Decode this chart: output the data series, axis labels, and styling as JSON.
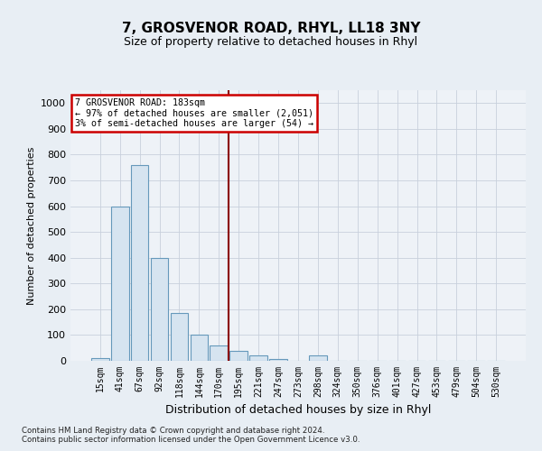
{
  "title": "7, GROSVENOR ROAD, RHYL, LL18 3NY",
  "subtitle": "Size of property relative to detached houses in Rhyl",
  "xlabel": "Distribution of detached houses by size in Rhyl",
  "ylabel": "Number of detached properties",
  "footer_line1": "Contains HM Land Registry data © Crown copyright and database right 2024.",
  "footer_line2": "Contains public sector information licensed under the Open Government Licence v3.0.",
  "annotation_line1": "7 GROSVENOR ROAD: 183sqm",
  "annotation_line2": "← 97% of detached houses are smaller (2,051)",
  "annotation_line3": "3% of semi-detached houses are larger (54) →",
  "bar_color": "#d6e4f0",
  "bar_edge_color": "#6699bb",
  "vline_color": "#8b0000",
  "vline_x": 7,
  "categories": [
    "15sqm",
    "41sqm",
    "67sqm",
    "92sqm",
    "118sqm",
    "144sqm",
    "170sqm",
    "195sqm",
    "221sqm",
    "247sqm",
    "273sqm",
    "298sqm",
    "324sqm",
    "350sqm",
    "376sqm",
    "401sqm",
    "427sqm",
    "453sqm",
    "479sqm",
    "504sqm",
    "530sqm"
  ],
  "values": [
    10,
    600,
    760,
    400,
    185,
    100,
    60,
    40,
    20,
    8,
    0,
    20,
    0,
    0,
    0,
    0,
    0,
    0,
    0,
    0,
    0
  ],
  "ylim": [
    0,
    1050
  ],
  "yticks": [
    0,
    100,
    200,
    300,
    400,
    500,
    600,
    700,
    800,
    900,
    1000
  ],
  "background_color": "#e8eef4",
  "plot_bg_color": "#eef2f7",
  "grid_color": "#c8d0dc",
  "title_fontsize": 11,
  "subtitle_fontsize": 9,
  "tick_fontsize": 8,
  "ylabel_fontsize": 8,
  "xlabel_fontsize": 9
}
